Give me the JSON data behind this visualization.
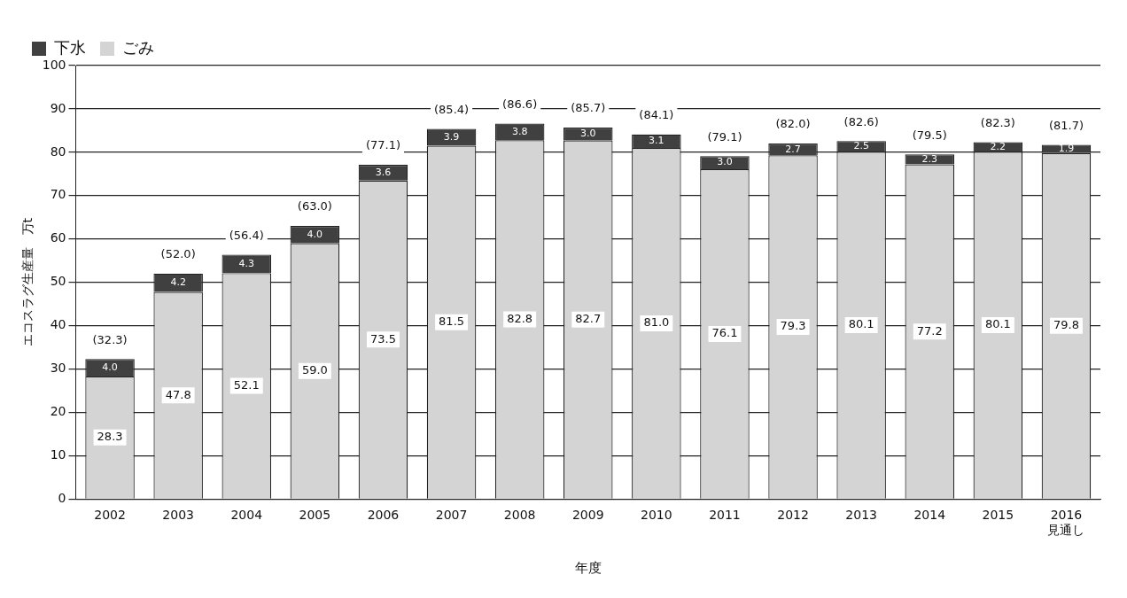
{
  "chart_data": {
    "type": "bar",
    "stacked": true,
    "xlabel": "年度",
    "ylabel": "エコスラグ生産量　万t",
    "categories": [
      "2002",
      "2003",
      "2004",
      "2005",
      "2006",
      "2007",
      "2008",
      "2009",
      "2010",
      "2011",
      "2012",
      "2013",
      "2014",
      "2015",
      "2016\n見通し"
    ],
    "series": [
      {
        "name": "ごみ",
        "color": "#d4d4d4",
        "values": [
          28.3,
          47.8,
          52.1,
          59.0,
          73.5,
          81.5,
          82.8,
          82.7,
          81.0,
          76.1,
          79.3,
          80.1,
          77.2,
          80.1,
          79.8
        ],
        "value_labels": [
          "28.3",
          "47.8",
          "52.1",
          "59.0",
          "73.5",
          "81.5",
          "82.8",
          "82.7",
          "81.0",
          "76.1",
          "79.3",
          "80.1",
          "77.2",
          "80.1",
          "79.8"
        ]
      },
      {
        "name": "下水",
        "color": "#404040",
        "values": [
          4.0,
          4.2,
          4.3,
          4.0,
          3.6,
          3.9,
          3.8,
          3.0,
          3.1,
          3.0,
          2.7,
          2.5,
          2.3,
          2.2,
          1.9
        ],
        "value_labels": [
          "4.0",
          "4.2",
          "4.3",
          "4.0",
          "3.6",
          "3.9",
          "3.8",
          "3.0",
          "3.1",
          "3.0",
          "2.7",
          "2.5",
          "2.3",
          "2.2",
          "1.9"
        ]
      }
    ],
    "totals": [
      "(32.3)",
      "(52.0)",
      "(56.4)",
      "(63.0)",
      "(77.1)",
      "(85.4)",
      "(86.6)",
      "(85.7)",
      "(84.1)",
      "(79.1)",
      "(82.0)",
      "(82.6)",
      "(79.5)",
      "(82.3)",
      "(81.7)"
    ],
    "ylim": [
      0,
      100
    ],
    "yticks": [
      0,
      10,
      20,
      30,
      40,
      50,
      60,
      70,
      80,
      90,
      100
    ],
    "grid": "y",
    "legend": "top left"
  }
}
